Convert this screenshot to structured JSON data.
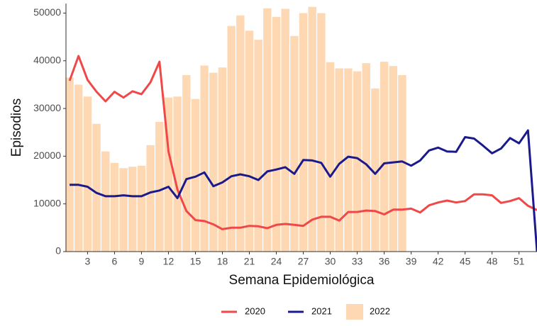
{
  "chart_data": {
    "type": "combo",
    "x_label": "Semana Epidemiológica",
    "y_label": "Episodios",
    "x": [
      1,
      2,
      3,
      4,
      5,
      6,
      7,
      8,
      9,
      10,
      11,
      12,
      13,
      14,
      15,
      16,
      17,
      18,
      19,
      20,
      21,
      22,
      23,
      24,
      25,
      26,
      27,
      28,
      29,
      30,
      31,
      32,
      33,
      34,
      35,
      36,
      37,
      38,
      39,
      40,
      41,
      42,
      43,
      44,
      45,
      46,
      47,
      48,
      49,
      50,
      51,
      52,
      53
    ],
    "xlim": [
      0.6,
      53
    ],
    "xticks": [
      3,
      6,
      9,
      12,
      15,
      18,
      21,
      24,
      27,
      30,
      33,
      36,
      39,
      42,
      45,
      48,
      51
    ],
    "ylim": [
      0,
      52000
    ],
    "yticks": [
      0,
      10000,
      20000,
      30000,
      40000,
      50000
    ],
    "series": [
      {
        "name": "2022",
        "type": "bar",
        "color": "#fdd8b3",
        "values": [
          36500,
          35000,
          32500,
          26800,
          21000,
          18600,
          17500,
          17800,
          18000,
          22300,
          27200,
          32300,
          32500,
          37000,
          32000,
          39000,
          37500,
          38600,
          47300,
          49500,
          46300,
          44400,
          51000,
          49200,
          50900,
          45200,
          50000,
          51300,
          50000,
          39700,
          38400,
          38400,
          37800,
          39500,
          34200,
          39800,
          38900,
          37000,
          null,
          null,
          null,
          null,
          null,
          null,
          null,
          null,
          null,
          null,
          null,
          null,
          null,
          null,
          null
        ]
      },
      {
        "name": "2020",
        "type": "line",
        "color": "#f04848",
        "values": [
          35800,
          41000,
          36000,
          33500,
          31500,
          33500,
          32300,
          33600,
          33000,
          35500,
          39800,
          21000,
          13000,
          8500,
          6600,
          6400,
          5700,
          4700,
          5000,
          5000,
          5400,
          5300,
          4900,
          5600,
          5800,
          5600,
          5400,
          6700,
          7300,
          7300,
          6500,
          8300,
          8300,
          8600,
          8500,
          7800,
          8800,
          8800,
          9000,
          8200,
          9700,
          10300,
          10700,
          10300,
          10600,
          12000,
          12000,
          11800,
          10200,
          10600,
          11200,
          9600,
          8700
        ]
      },
      {
        "name": "2021",
        "type": "line",
        "color": "#1a1a8c",
        "values": [
          14000,
          14000,
          13600,
          12300,
          11600,
          11600,
          11800,
          11600,
          11600,
          12400,
          12800,
          13600,
          11200,
          15200,
          15700,
          16600,
          13700,
          14500,
          15800,
          16200,
          15800,
          15000,
          16800,
          17200,
          17700,
          16300,
          19200,
          19100,
          18600,
          15700,
          18400,
          19900,
          19600,
          18300,
          16300,
          18500,
          18700,
          18900,
          18000,
          19100,
          21200,
          21800,
          21000,
          20900,
          24000,
          23700,
          22200,
          20600,
          21600,
          23800,
          22700,
          25400,
          0
        ]
      }
    ],
    "legend_order": [
      1,
      2,
      0
    ]
  }
}
